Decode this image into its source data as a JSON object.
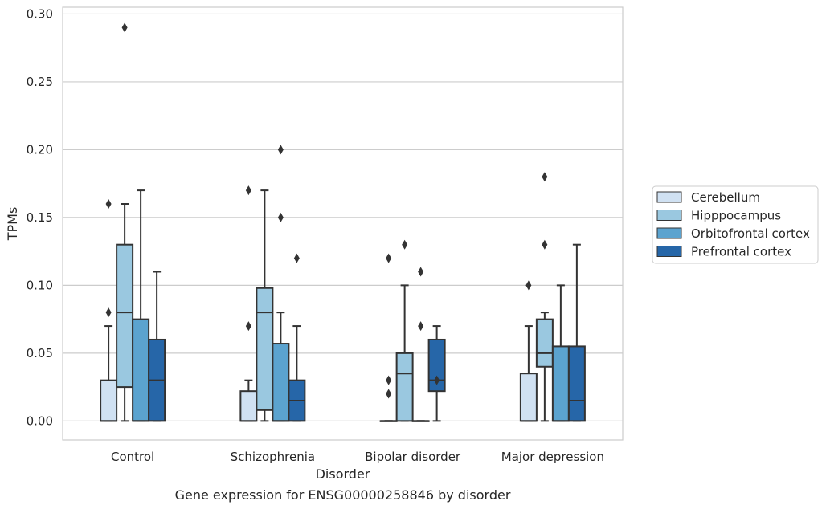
{
  "chart_data": {
    "type": "box",
    "caption": "Gene expression for ENSG00000258846 by disorder",
    "xlabel": "Disorder",
    "ylabel": "TPMs",
    "ylim": [
      -0.014,
      0.305
    ],
    "yticks": [
      0.0,
      0.05,
      0.1,
      0.15,
      0.2,
      0.25,
      0.3
    ],
    "ytick_labels": [
      "0.00",
      "0.05",
      "0.10",
      "0.15",
      "0.20",
      "0.25",
      "0.30"
    ],
    "grid": "horizontal",
    "legend_position": "right",
    "categories": [
      "Control",
      "Schizophrenia",
      "Bipolar disorder",
      "Major depression"
    ],
    "series": [
      {
        "name": "Cerebellum",
        "color": "#d0e1f2",
        "boxes": [
          {
            "whisker_low": 0.0,
            "q1": 0.0,
            "median": 0.0,
            "q3": 0.03,
            "whisker_high": 0.07,
            "outliers": [
              0.08,
              0.16
            ]
          },
          {
            "whisker_low": 0.0,
            "q1": 0.0,
            "median": 0.0,
            "q3": 0.022,
            "whisker_high": 0.03,
            "outliers": [
              0.07,
              0.17
            ]
          },
          {
            "whisker_low": 0.0,
            "q1": 0.0,
            "median": 0.0,
            "q3": 0.0,
            "whisker_high": 0.0,
            "outliers": [
              0.02,
              0.03,
              0.12
            ]
          },
          {
            "whisker_low": 0.0,
            "q1": 0.0,
            "median": 0.0,
            "q3": 0.035,
            "whisker_high": 0.07,
            "outliers": [
              0.1
            ]
          }
        ]
      },
      {
        "name": "Hipppocampus",
        "color": "#9ac8e0",
        "boxes": [
          {
            "whisker_low": 0.0,
            "q1": 0.025,
            "median": 0.08,
            "q3": 0.13,
            "whisker_high": 0.16,
            "outliers": [
              0.29
            ]
          },
          {
            "whisker_low": 0.0,
            "q1": 0.008,
            "median": 0.08,
            "q3": 0.098,
            "whisker_high": 0.17,
            "outliers": []
          },
          {
            "whisker_low": 0.0,
            "q1": 0.0,
            "median": 0.035,
            "q3": 0.05,
            "whisker_high": 0.1,
            "outliers": [
              0.13
            ]
          },
          {
            "whisker_low": 0.0,
            "q1": 0.04,
            "median": 0.05,
            "q3": 0.075,
            "whisker_high": 0.08,
            "outliers": [
              0.13,
              0.18
            ]
          }
        ]
      },
      {
        "name": "Orbitofrontal cortex",
        "color": "#5ba3cf",
        "boxes": [
          {
            "whisker_low": 0.0,
            "q1": 0.0,
            "median": 0.0,
            "q3": 0.075,
            "whisker_high": 0.17,
            "outliers": []
          },
          {
            "whisker_low": 0.0,
            "q1": 0.0,
            "median": 0.0,
            "q3": 0.057,
            "whisker_high": 0.08,
            "outliers": [
              0.15,
              0.2
            ]
          },
          {
            "whisker_low": 0.0,
            "q1": 0.0,
            "median": 0.0,
            "q3": 0.0,
            "whisker_high": 0.0,
            "outliers": [
              0.07,
              0.11
            ]
          },
          {
            "whisker_low": 0.0,
            "q1": 0.0,
            "median": 0.0,
            "q3": 0.055,
            "whisker_high": 0.1,
            "outliers": []
          }
        ]
      },
      {
        "name": "Prefrontal cortex",
        "color": "#2666a8",
        "boxes": [
          {
            "whisker_low": 0.0,
            "q1": 0.0,
            "median": 0.03,
            "q3": 0.06,
            "whisker_high": 0.11,
            "outliers": []
          },
          {
            "whisker_low": 0.0,
            "q1": 0.0,
            "median": 0.015,
            "q3": 0.03,
            "whisker_high": 0.07,
            "outliers": [
              0.12
            ]
          },
          {
            "whisker_low": 0.0,
            "q1": 0.022,
            "median": 0.03,
            "q3": 0.06,
            "whisker_high": 0.07,
            "outliers": [
              0.03
            ]
          },
          {
            "whisker_low": 0.0,
            "q1": 0.0,
            "median": 0.015,
            "q3": 0.055,
            "whisker_high": 0.13,
            "outliers": []
          }
        ]
      }
    ]
  }
}
